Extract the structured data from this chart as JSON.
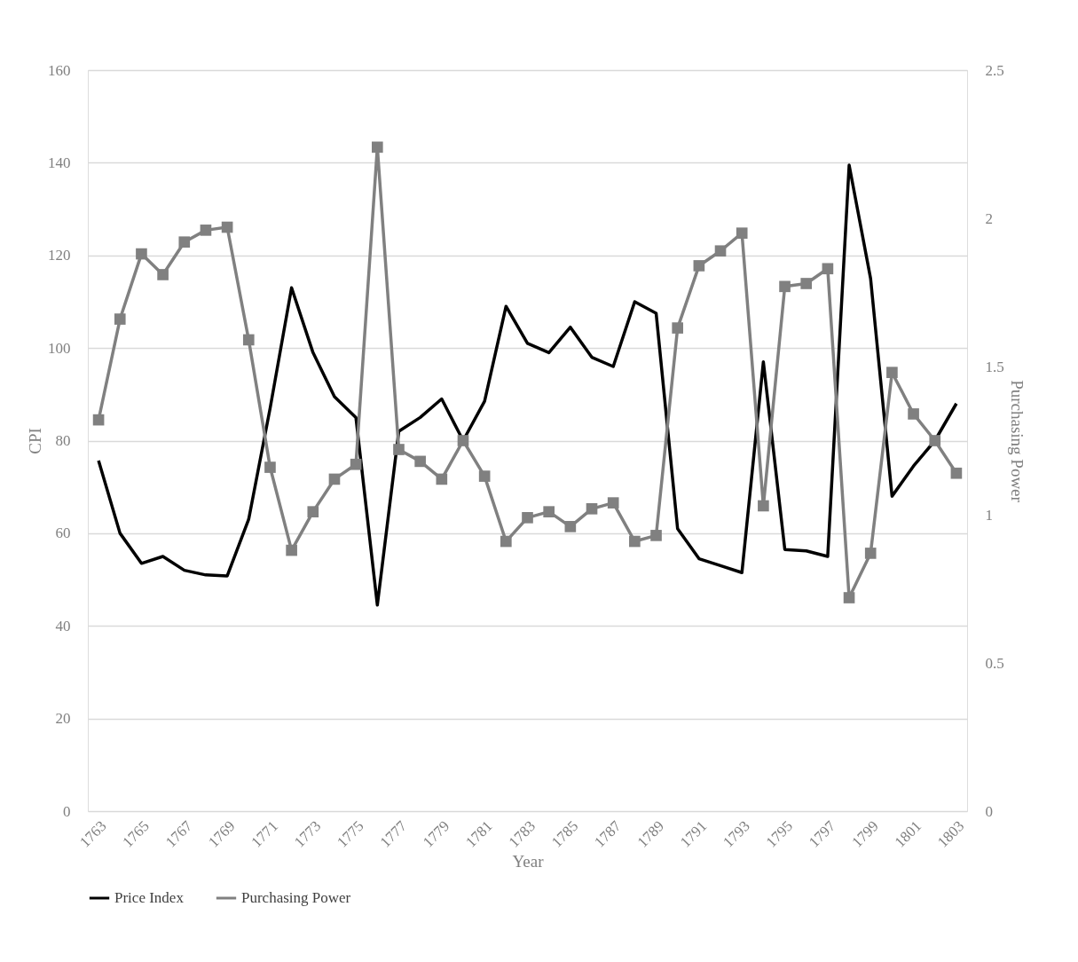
{
  "chart_data": {
    "type": "line",
    "xlabel": "Year",
    "ylabel": "CPI",
    "y2label": "Purchasing Power",
    "x": [
      1763,
      1764,
      1765,
      1766,
      1767,
      1768,
      1769,
      1770,
      1771,
      1772,
      1773,
      1774,
      1775,
      1776,
      1777,
      1778,
      1779,
      1780,
      1781,
      1782,
      1783,
      1784,
      1785,
      1786,
      1787,
      1788,
      1789,
      1790,
      1791,
      1792,
      1793,
      1794,
      1795,
      1796,
      1797,
      1798,
      1799,
      1800,
      1801,
      1802,
      1803
    ],
    "xlim": [
      1762.5,
      1803.5
    ],
    "xticks": [
      1763,
      1765,
      1767,
      1769,
      1771,
      1773,
      1775,
      1777,
      1779,
      1781,
      1783,
      1785,
      1787,
      1789,
      1791,
      1793,
      1795,
      1797,
      1799,
      1801,
      1803
    ],
    "ylim": [
      0,
      160
    ],
    "yticks": [
      0,
      20,
      40,
      60,
      80,
      100,
      120,
      140,
      160
    ],
    "y2lim": [
      0,
      2.5
    ],
    "y2ticks": [
      0,
      0.5,
      1,
      1.5,
      2,
      2.5
    ],
    "grid": "y",
    "legend": "bottom",
    "series": [
      {
        "name": "Price Index",
        "color": "#000000",
        "marker": "none",
        "values": [
          75.7,
          60,
          53.5,
          55,
          52,
          51,
          50.8,
          63,
          87,
          113,
          99,
          89.5,
          85,
          44.5,
          82,
          85,
          89,
          80,
          88.5,
          109,
          101,
          99,
          104.5,
          98,
          96,
          110,
          107.5,
          61,
          54.5,
          53,
          51.5,
          97,
          56.5,
          56.2,
          55,
          139.5,
          115,
          68,
          74.5,
          80,
          88
        ]
      },
      {
        "name": "Purchasing Power",
        "color": "#808080",
        "marker": "square",
        "axis": "y2",
        "values": [
          1.32,
          1.66,
          1.88,
          1.81,
          1.92,
          1.96,
          1.97,
          1.59,
          1.16,
          0.88,
          1.01,
          1.12,
          1.17,
          2.24,
          1.22,
          1.18,
          1.12,
          1.25,
          1.13,
          0.91,
          0.99,
          1.01,
          0.96,
          1.02,
          1.04,
          0.91,
          0.93,
          1.63,
          1.84,
          1.89,
          1.95,
          1.03,
          1.77,
          1.78,
          1.83,
          0.72,
          0.87,
          1.48,
          1.34,
          1.25,
          1.14
        ]
      }
    ]
  }
}
